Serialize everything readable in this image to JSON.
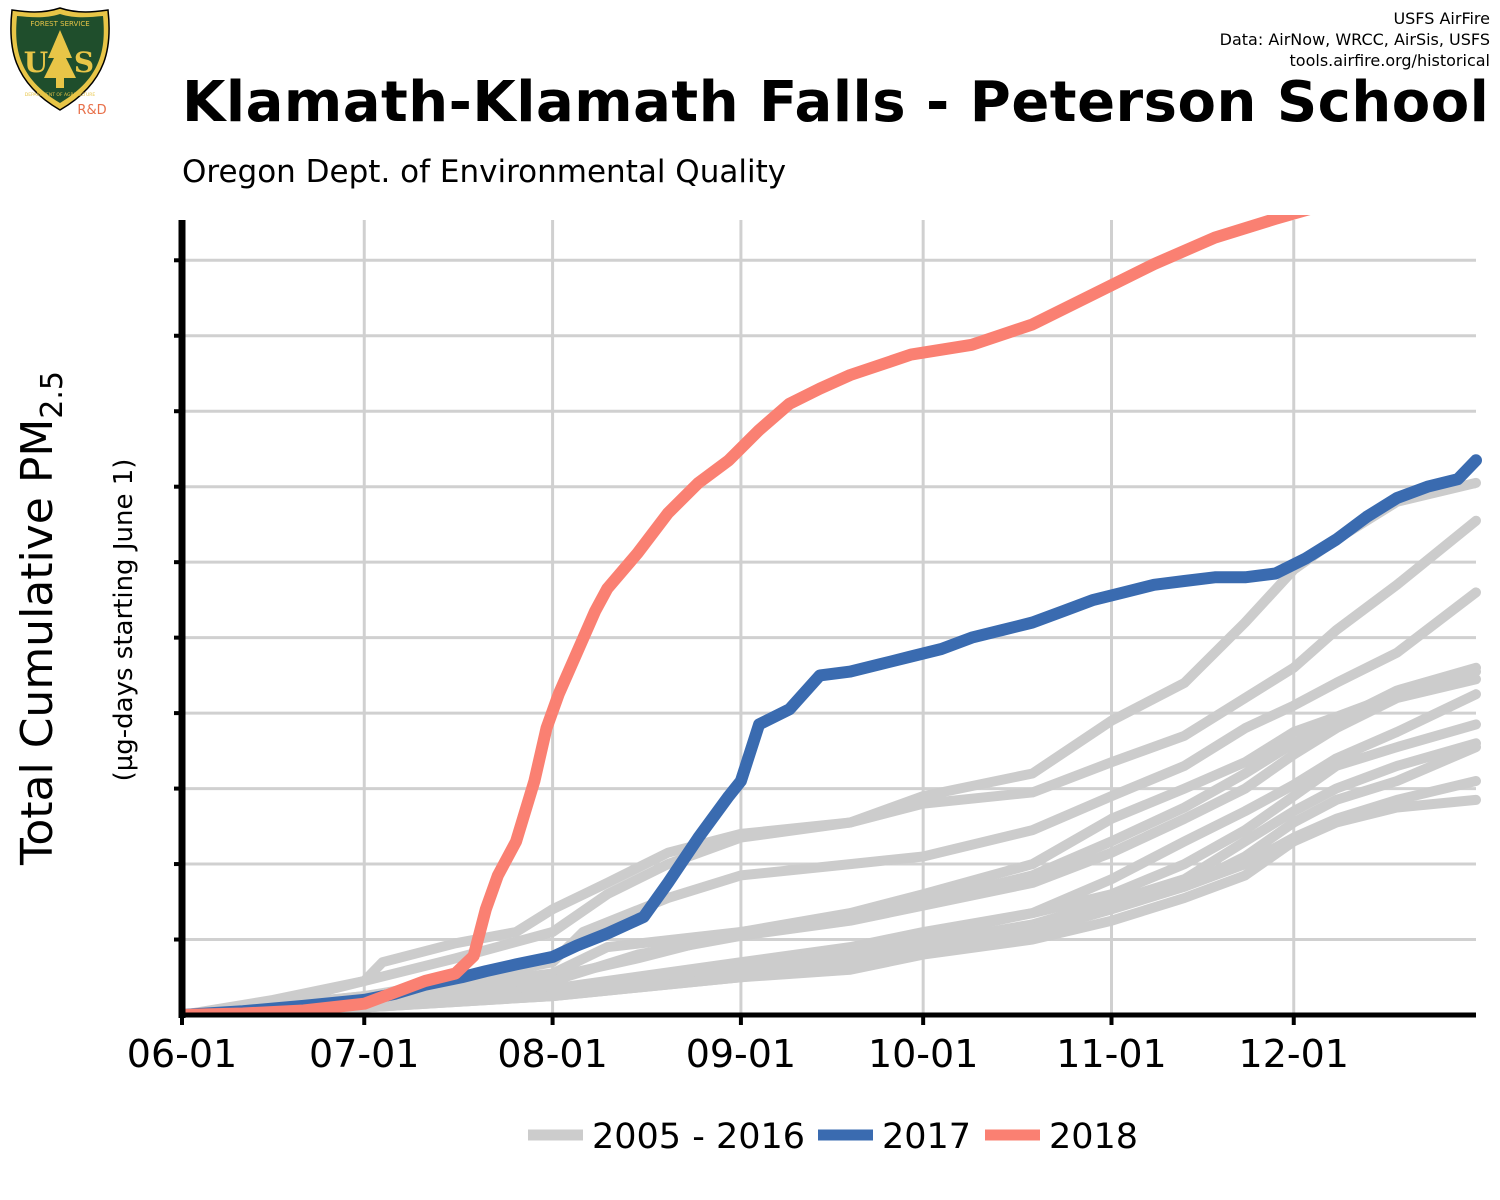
{
  "logo": {
    "top_text": "FOREST SERVICE",
    "letters": "US",
    "bottom_text": "DEPARTMENT OF AGRICULTURE",
    "tag": "R&D"
  },
  "credits": [
    "USFS AirFire",
    "Data: AirNow, WRCC, AirSis, USFS",
    "tools.airfire.org/historical"
  ],
  "title": "Klamath-Klamath Falls - Peterson School",
  "subtitle": "Oregon Dept. of Environmental Quality",
  "colors": {
    "history": "#cccccc",
    "y2017": "#3a6bb0",
    "y2018": "#fa8072",
    "grid": "#d0d0d0",
    "axis": "#000000",
    "logo_green": "#1f4e2c",
    "logo_gold": "#e8c547",
    "logo_tag": "#e8704a"
  },
  "chart_data": {
    "type": "line",
    "xlabel": "",
    "ylabel": "Total Cumulative PM",
    "ylabel_subscript": "2.5",
    "ylabel_note": "(µg-days starting June 1)",
    "x_ticks": [
      "06-01",
      "07-01",
      "08-01",
      "09-01",
      "10-01",
      "11-01",
      "12-01"
    ],
    "x_tick_days": [
      0,
      30,
      61,
      92,
      122,
      153,
      183
    ],
    "xlim": [
      0,
      213
    ],
    "ylim": [
      0,
      10.6
    ],
    "y_gridlines": [
      1,
      2,
      3,
      4,
      5,
      6,
      7,
      8,
      9,
      10
    ],
    "y_tick_labels_shown": false,
    "grid": true,
    "legend": {
      "position": "bottom",
      "entries": [
        {
          "label": "2005 - 2016",
          "color": "#cccccc"
        },
        {
          "label": "2017",
          "color": "#3a6bb0"
        },
        {
          "label": "2018",
          "color": "#fa8072"
        }
      ]
    },
    "series": [
      {
        "group": "history",
        "x": [
          0,
          15,
          30,
          33,
          45,
          55,
          61,
          70,
          80,
          92,
          110,
          122,
          140,
          153,
          165,
          175,
          183,
          190,
          200,
          213
        ],
        "y": [
          0,
          0.2,
          0.45,
          0.7,
          0.95,
          1.1,
          1.4,
          1.75,
          2.15,
          2.4,
          2.55,
          2.9,
          3.2,
          3.9,
          4.4,
          5.2,
          5.9,
          6.3,
          6.8,
          7.05
        ]
      },
      {
        "group": "history",
        "x": [
          0,
          20,
          30,
          45,
          61,
          70,
          80,
          92,
          110,
          122,
          140,
          153,
          165,
          175,
          183,
          190,
          200,
          213
        ],
        "y": [
          0,
          0.25,
          0.45,
          0.75,
          1.1,
          1.6,
          2.0,
          2.35,
          2.55,
          2.8,
          2.95,
          3.35,
          3.7,
          4.2,
          4.6,
          5.1,
          5.7,
          6.55
        ]
      },
      {
        "group": "history",
        "x": [
          0,
          30,
          45,
          61,
          66,
          80,
          92,
          110,
          122,
          140,
          153,
          165,
          175,
          183,
          190,
          200,
          213
        ],
        "y": [
          0,
          0.25,
          0.45,
          0.7,
          1.1,
          1.55,
          1.85,
          2.0,
          2.1,
          2.45,
          2.9,
          3.3,
          3.8,
          4.1,
          4.4,
          4.8,
          5.6
        ]
      },
      {
        "group": "history",
        "x": [
          0,
          30,
          61,
          75,
          92,
          110,
          122,
          140,
          153,
          165,
          175,
          183,
          190,
          200,
          213
        ],
        "y": [
          0,
          0.2,
          0.5,
          0.75,
          1.1,
          1.3,
          1.5,
          1.85,
          2.3,
          2.75,
          3.2,
          3.6,
          3.9,
          4.3,
          4.6
        ]
      },
      {
        "group": "history",
        "x": [
          0,
          30,
          61,
          70,
          92,
          110,
          122,
          140,
          153,
          165,
          175,
          183,
          190,
          200,
          213
        ],
        "y": [
          0,
          0.25,
          0.55,
          0.9,
          1.1,
          1.35,
          1.6,
          2.0,
          2.6,
          3.0,
          3.35,
          3.75,
          3.95,
          4.25,
          4.55
        ]
      },
      {
        "group": "history",
        "x": [
          0,
          30,
          61,
          75,
          92,
          110,
          122,
          140,
          153,
          165,
          175,
          183,
          190,
          200,
          213
        ],
        "y": [
          0,
          0.2,
          0.45,
          0.8,
          1.05,
          1.25,
          1.45,
          1.75,
          2.15,
          2.6,
          3.0,
          3.45,
          3.8,
          4.2,
          4.45
        ]
      },
      {
        "group": "history",
        "x": [
          0,
          30,
          61,
          92,
          110,
          122,
          140,
          153,
          165,
          175,
          183,
          190,
          200,
          213
        ],
        "y": [
          0,
          0.15,
          0.35,
          0.7,
          0.9,
          1.1,
          1.35,
          1.8,
          2.3,
          2.7,
          3.05,
          3.4,
          3.75,
          4.25
        ]
      },
      {
        "group": "history",
        "x": [
          0,
          30,
          61,
          92,
          110,
          122,
          140,
          153,
          165,
          175,
          183,
          190,
          200,
          213
        ],
        "y": [
          0,
          0.15,
          0.35,
          0.65,
          0.85,
          1.05,
          1.35,
          1.6,
          2.0,
          2.45,
          2.9,
          3.3,
          3.55,
          3.85
        ]
      },
      {
        "group": "history",
        "x": [
          0,
          30,
          61,
          92,
          110,
          122,
          140,
          153,
          165,
          175,
          183,
          190,
          200,
          213
        ],
        "y": [
          0,
          0.15,
          0.3,
          0.55,
          0.75,
          0.95,
          1.2,
          1.5,
          1.8,
          2.3,
          2.7,
          3.0,
          3.3,
          3.6
        ]
      },
      {
        "group": "history",
        "x": [
          0,
          30,
          61,
          92,
          110,
          122,
          140,
          153,
          165,
          175,
          183,
          190,
          200,
          213
        ],
        "y": [
          0,
          0.1,
          0.3,
          0.55,
          0.7,
          0.9,
          1.15,
          1.45,
          1.7,
          2.1,
          2.55,
          2.85,
          3.1,
          3.55
        ]
      },
      {
        "group": "history",
        "x": [
          0,
          30,
          61,
          92,
          110,
          122,
          140,
          153,
          165,
          175,
          183,
          190,
          200,
          213
        ],
        "y": [
          0,
          0.1,
          0.25,
          0.5,
          0.65,
          0.85,
          1.1,
          1.4,
          1.7,
          2.0,
          2.35,
          2.6,
          2.85,
          3.1
        ]
      },
      {
        "group": "history",
        "x": [
          0,
          30,
          61,
          92,
          110,
          122,
          140,
          153,
          165,
          175,
          183,
          190,
          200,
          213
        ],
        "y": [
          0,
          0.1,
          0.25,
          0.5,
          0.6,
          0.8,
          1.0,
          1.25,
          1.55,
          1.85,
          2.3,
          2.55,
          2.75,
          2.85
        ]
      },
      {
        "name": "2017",
        "group": "y2017",
        "x": [
          0,
          10,
          20,
          30,
          35,
          40,
          46,
          50,
          55,
          61,
          65,
          70,
          76,
          80,
          85,
          90,
          92,
          95,
          100,
          105,
          110,
          115,
          120,
          125,
          130,
          135,
          140,
          145,
          150,
          155,
          160,
          165,
          170,
          175,
          180,
          185,
          190,
          195,
          200,
          205,
          210,
          213
        ],
        "y": [
          0,
          0.05,
          0.12,
          0.2,
          0.28,
          0.4,
          0.5,
          0.58,
          0.67,
          0.77,
          0.92,
          1.08,
          1.3,
          1.75,
          2.35,
          2.9,
          3.1,
          3.85,
          4.05,
          4.5,
          4.55,
          4.65,
          4.75,
          4.85,
          5.0,
          5.1,
          5.2,
          5.35,
          5.5,
          5.6,
          5.7,
          5.75,
          5.8,
          5.8,
          5.85,
          6.05,
          6.3,
          6.6,
          6.85,
          7.0,
          7.1,
          7.35
        ]
      },
      {
        "name": "2018",
        "group": "y2018",
        "x": [
          0,
          10,
          20,
          30,
          35,
          40,
          45,
          48,
          50,
          52,
          55,
          58,
          60,
          62,
          65,
          68,
          70,
          75,
          80,
          85,
          90,
          95,
          100,
          105,
          110,
          120,
          130,
          140,
          150,
          160,
          170,
          180,
          190,
          200,
          210,
          213
        ],
        "y": [
          0,
          0.02,
          0.06,
          0.15,
          0.3,
          0.45,
          0.55,
          0.78,
          1.4,
          1.85,
          2.3,
          3.1,
          3.8,
          4.25,
          4.8,
          5.35,
          5.65,
          6.12,
          6.65,
          7.05,
          7.35,
          7.75,
          8.1,
          8.3,
          8.48,
          8.75,
          8.88,
          9.15,
          9.55,
          9.95,
          10.3,
          10.55,
          10.78,
          10.95,
          11.05,
          11.1
        ]
      }
    ]
  }
}
